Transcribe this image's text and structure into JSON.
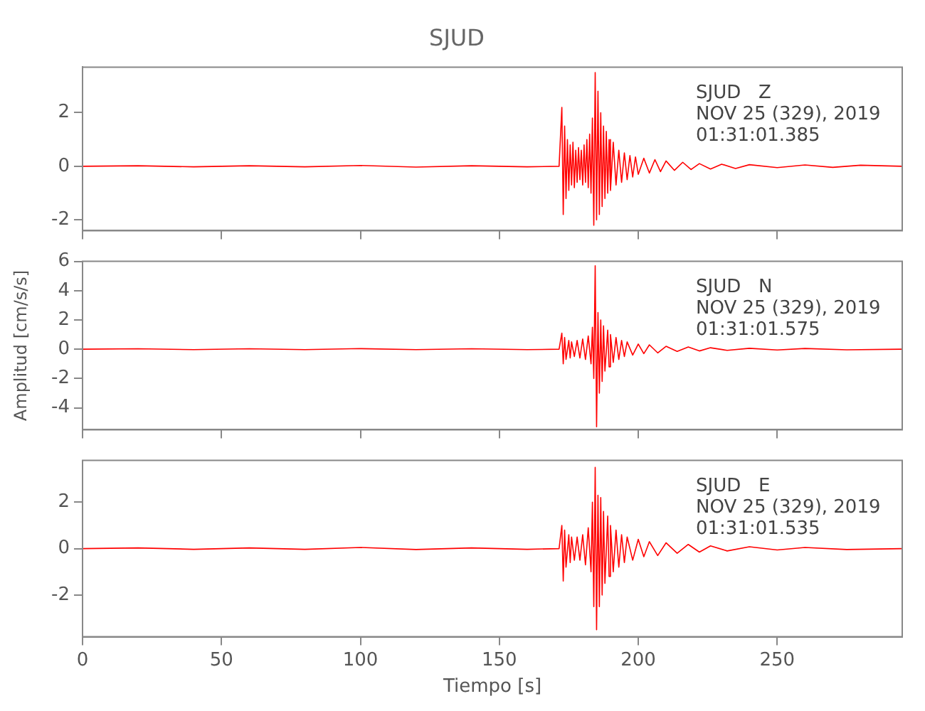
{
  "chart_data": [
    {
      "type": "line",
      "title": "SJUD",
      "annotations": [
        "SJUD   Z",
        "NOV 25 (329), 2019",
        "01:31:01.385"
      ],
      "xlim": [
        0,
        295
      ],
      "xticks": [
        0,
        50,
        100,
        150,
        200,
        250
      ],
      "ylim": [
        -2.4,
        3.7
      ],
      "yticks": [
        -2,
        0,
        2
      ],
      "tick_labels": "y",
      "series": [
        {
          "color": "#ff0000",
          "x": [
            0,
            20,
            40,
            60,
            80,
            100,
            120,
            140,
            160,
            171.5,
            172.5,
            173,
            173.5,
            174,
            174.5,
            175,
            175.5,
            176,
            176.5,
            177,
            177.5,
            178,
            178.5,
            179,
            179.5,
            180,
            180.5,
            181,
            181.5,
            182,
            182.5,
            183,
            183.5,
            184,
            184.5,
            185,
            185.5,
            186,
            186.5,
            187,
            187.5,
            188,
            188.5,
            189,
            189.5,
            190,
            191,
            192,
            193,
            194,
            195,
            196,
            197,
            198,
            199,
            200,
            202,
            204,
            206,
            208,
            210,
            213,
            216,
            219,
            222,
            226,
            230,
            235,
            240,
            250,
            260,
            270,
            280,
            295
          ],
          "values": [
            0,
            0.02,
            -0.02,
            0.02,
            -0.02,
            0.03,
            -0.03,
            0.02,
            -0.02,
            0,
            2.2,
            -1.8,
            1.5,
            -1.2,
            1.0,
            -0.9,
            0.8,
            -0.7,
            0.9,
            -0.8,
            0.6,
            -0.6,
            0.7,
            -0.5,
            0.6,
            -0.7,
            0.8,
            -0.6,
            1.0,
            -0.8,
            1.2,
            -1.0,
            1.8,
            -2.2,
            3.5,
            -2.0,
            2.8,
            -1.8,
            2.0,
            -1.5,
            1.5,
            -1.2,
            1.3,
            -1.0,
            1.0,
            -0.9,
            0.9,
            -0.7,
            0.6,
            -0.6,
            0.5,
            -0.5,
            0.4,
            -0.4,
            0.35,
            -0.3,
            0.3,
            -0.25,
            0.25,
            -0.2,
            0.2,
            -0.15,
            0.15,
            -0.12,
            0.1,
            -0.1,
            0.08,
            -0.08,
            0.06,
            -0.05,
            0.05,
            -0.04,
            0.04,
            0
          ]
        }
      ]
    },
    {
      "type": "line",
      "ylabel": "Amplitud [cm/s/s]",
      "annotations": [
        "SJUD   N",
        "NOV 25 (329), 2019",
        "01:31:01.575"
      ],
      "xlim": [
        0,
        295
      ],
      "xticks": [
        0,
        50,
        100,
        150,
        200,
        250
      ],
      "ylim": [
        -5.5,
        6
      ],
      "yticks": [
        -4,
        -2,
        0,
        2,
        4,
        6
      ],
      "tick_labels": "y",
      "series": [
        {
          "color": "#ff0000",
          "x": [
            0,
            20,
            40,
            60,
            80,
            100,
            120,
            140,
            160,
            171.5,
            172.5,
            173,
            173.5,
            174,
            175,
            175.5,
            176,
            177,
            178,
            179,
            180,
            181,
            182,
            183,
            183.5,
            184,
            184.5,
            185,
            185.5,
            186,
            186.5,
            187,
            187.5,
            188,
            189,
            189.5,
            190,
            191,
            192,
            193,
            194,
            195,
            196,
            198,
            200,
            202,
            204,
            207,
            210,
            214,
            218,
            222,
            226,
            232,
            240,
            250,
            260,
            275,
            295
          ],
          "values": [
            0,
            0.03,
            -0.03,
            0.03,
            -0.03,
            0.04,
            -0.03,
            0.03,
            -0.03,
            0,
            1.1,
            -1.0,
            0.8,
            -0.7,
            0.6,
            -0.6,
            0.5,
            -0.5,
            0.6,
            -0.6,
            0.7,
            -0.7,
            0.9,
            -1.0,
            1.5,
            -2.0,
            5.7,
            -5.3,
            2.5,
            -3.0,
            2.0,
            -2.2,
            1.6,
            -1.5,
            1.3,
            -1.2,
            1.0,
            -0.9,
            0.8,
            -0.7,
            0.6,
            -0.5,
            0.5,
            -0.4,
            0.35,
            -0.3,
            0.3,
            -0.25,
            0.2,
            -0.15,
            0.15,
            -0.12,
            0.1,
            -0.08,
            0.06,
            -0.05,
            0.05,
            -0.04,
            0
          ]
        }
      ]
    },
    {
      "type": "line",
      "xlabel": "Tiempo [s]",
      "annotations": [
        "SJUD   E",
        "NOV 25 (329), 2019",
        "01:31:01.535"
      ],
      "xlim": [
        0,
        295
      ],
      "xticks": [
        0,
        50,
        100,
        150,
        200,
        250
      ],
      "ylim": [
        -3.8,
        3.8
      ],
      "yticks": [
        -2,
        0,
        2
      ],
      "series": [
        {
          "color": "#ff0000",
          "x": [
            0,
            20,
            40,
            60,
            80,
            100,
            120,
            140,
            160,
            171.5,
            172.5,
            173,
            173.5,
            174,
            175,
            175.5,
            176,
            177,
            178,
            179,
            180,
            181,
            182,
            183,
            183.5,
            184,
            184.5,
            185,
            185.5,
            186,
            186.5,
            187,
            187.5,
            188,
            189,
            189.5,
            190,
            191,
            192,
            193,
            194,
            195,
            196,
            198,
            200,
            202,
            204,
            207,
            210,
            214,
            218,
            222,
            226,
            232,
            240,
            250,
            260,
            275,
            295
          ],
          "values": [
            0,
            0.03,
            -0.03,
            0.03,
            -0.03,
            0.05,
            -0.04,
            0.03,
            -0.03,
            0,
            1.0,
            -1.4,
            0.8,
            -0.8,
            0.6,
            -0.6,
            0.5,
            -0.5,
            0.5,
            -0.5,
            0.6,
            -0.7,
            0.9,
            -1.0,
            2.0,
            -2.5,
            3.5,
            -3.5,
            2.3,
            -2.5,
            2.2,
            -2.0,
            1.6,
            -1.5,
            1.4,
            -1.2,
            1.0,
            -1.0,
            0.8,
            -0.8,
            0.6,
            -0.6,
            0.5,
            -0.5,
            0.4,
            -0.35,
            0.3,
            -0.3,
            0.25,
            -0.2,
            0.18,
            -0.15,
            0.12,
            -0.1,
            0.08,
            -0.06,
            0.05,
            -0.04,
            0
          ]
        }
      ]
    }
  ]
}
